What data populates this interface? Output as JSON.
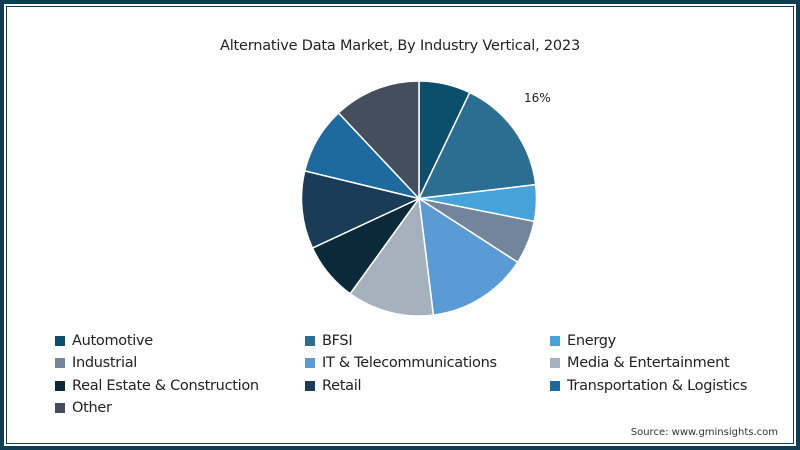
{
  "chart_data": {
    "type": "pie",
    "title": "Alternative Data Market, By Industry Vertical, 2023",
    "categories": [
      "Automotive",
      "BFSI",
      "Energy",
      "Industrial",
      "IT & Telecommunications",
      "Media & Entertainment",
      "Real Estate & Construction",
      "Retail",
      "Transportation & Logistics",
      "Other"
    ],
    "values": [
      7.1,
      16.0,
      5.0,
      6.0,
      13.9,
      11.9,
      8.1,
      10.7,
      9.2,
      12.0
    ],
    "colors": [
      "#0b4f6c",
      "#2c6e91",
      "#45a3da",
      "#72859b",
      "#5b9bd5",
      "#a5b2bd",
      "#0a2a3a",
      "#1a3c56",
      "#1c6a9e",
      "#444e5c"
    ],
    "annotations": [
      {
        "category": "BFSI",
        "text": "16%"
      }
    ],
    "start_angle": "12 o'clock, clockwise",
    "legend_position": "bottom",
    "source": "Source: www.gminsights.com"
  },
  "legend": {
    "items": [
      {
        "label": "Automotive",
        "color": "#0b4f6c"
      },
      {
        "label": "BFSI",
        "color": "#2c6e91"
      },
      {
        "label": "Energy",
        "color": "#45a3da"
      },
      {
        "label": "Industrial",
        "color": "#72859b"
      },
      {
        "label": "IT & Telecommunications",
        "color": "#5b9bd5"
      },
      {
        "label": "Media & Entertainment",
        "color": "#a5b2bd"
      },
      {
        "label": "Real Estate & Construction",
        "color": "#0a2a3a"
      },
      {
        "label": "Retail",
        "color": "#1a3c56"
      },
      {
        "label": "Transportation & Logistics",
        "color": "#1c6a9e"
      },
      {
        "label": "Other",
        "color": "#444e5c"
      }
    ]
  },
  "frame": {
    "border_color": "#0f3d52"
  }
}
